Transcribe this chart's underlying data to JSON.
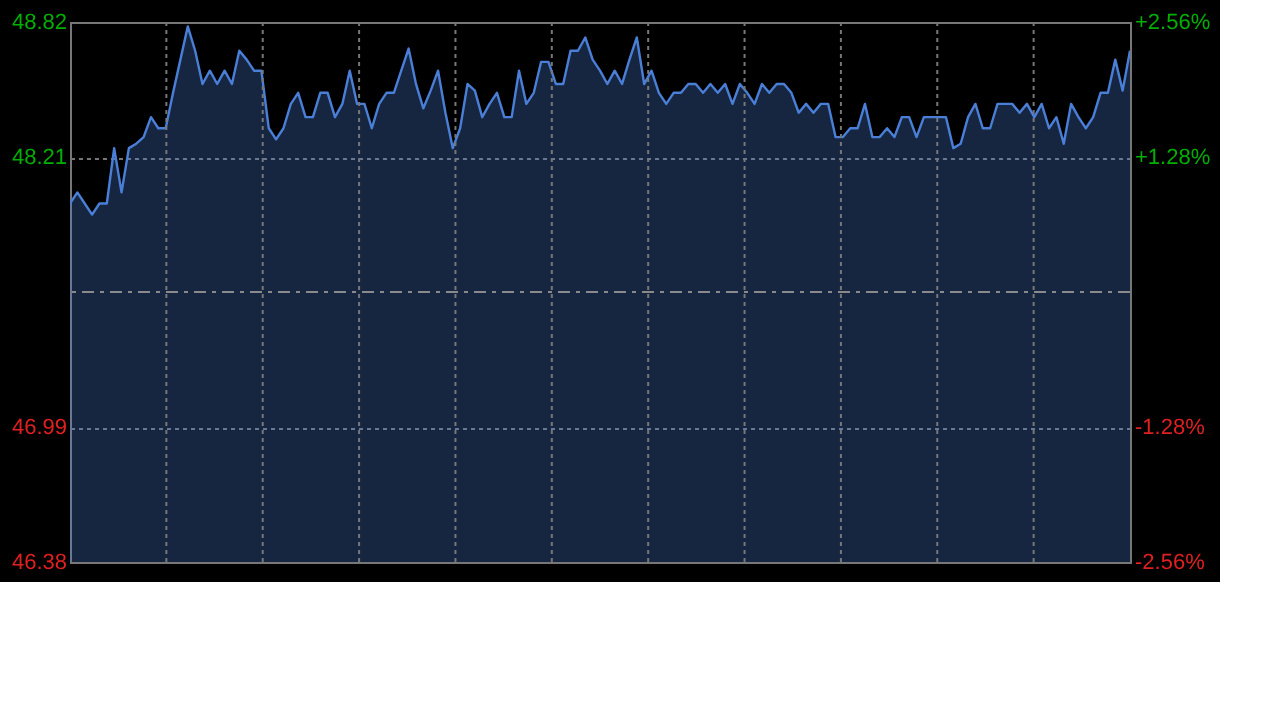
{
  "chart_data": {
    "type": "area",
    "categories": [
      null,
      null,
      null,
      null,
      null,
      null,
      null,
      null,
      null,
      null,
      null,
      null,
      null,
      null,
      null,
      null,
      null,
      null,
      null,
      null,
      null,
      null,
      null,
      null,
      null,
      null,
      null,
      null,
      null,
      null,
      null,
      null,
      null,
      null,
      null,
      null,
      null,
      null,
      null,
      null,
      null,
      null,
      null,
      null,
      null,
      null,
      null,
      null,
      null,
      null,
      null,
      null,
      null,
      null,
      null,
      null,
      null,
      null,
      null,
      null,
      null,
      null,
      null,
      null,
      null,
      null,
      null,
      null,
      null,
      null,
      null,
      null,
      null,
      null,
      null,
      null,
      null,
      null,
      null,
      null,
      null,
      null,
      null,
      null,
      null,
      null,
      null,
      null,
      null,
      null,
      null,
      null,
      null,
      null,
      null,
      null,
      null,
      null,
      null,
      null,
      null,
      null,
      null,
      null,
      null,
      null,
      null,
      null,
      null,
      null,
      null,
      null,
      null,
      null,
      null,
      null,
      null,
      null,
      null,
      null,
      null,
      null,
      null,
      null,
      null,
      null,
      null,
      null,
      null,
      null,
      null,
      null,
      null,
      null,
      null,
      null,
      null,
      null,
      null,
      null,
      null,
      null,
      null,
      null,
      null
    ],
    "series": [
      {
        "color": "#4a7fd8",
        "values": [
          48.0,
          48.05,
          48.0,
          47.95,
          48.0,
          48.0,
          48.25,
          48.05,
          48.25,
          48.27,
          48.3,
          48.39,
          48.34,
          48.34,
          48.5,
          48.65,
          48.8,
          48.69,
          48.54,
          48.6,
          48.54,
          48.6,
          48.54,
          48.69,
          48.65,
          48.6,
          48.6,
          48.34,
          48.29,
          48.34,
          48.45,
          48.5,
          48.39,
          48.39,
          48.5,
          48.5,
          48.39,
          48.45,
          48.6,
          48.45,
          48.45,
          48.34,
          48.45,
          48.5,
          48.5,
          48.6,
          48.7,
          48.54,
          48.43,
          48.51,
          48.6,
          48.41,
          48.25,
          48.34,
          48.54,
          48.51,
          48.39,
          48.45,
          48.5,
          48.39,
          48.39,
          48.6,
          48.45,
          48.5,
          48.64,
          48.64,
          48.54,
          48.54,
          48.69,
          48.69,
          48.75,
          48.65,
          48.6,
          48.54,
          48.6,
          48.54,
          48.65,
          48.75,
          48.54,
          48.6,
          48.5,
          48.45,
          48.5,
          48.5,
          48.54,
          48.54,
          48.5,
          48.54,
          48.5,
          48.54,
          48.45,
          48.54,
          48.5,
          48.45,
          48.54,
          48.5,
          48.54,
          48.54,
          48.5,
          48.41,
          48.45,
          48.41,
          48.45,
          48.45,
          48.3,
          48.3,
          48.34,
          48.34,
          48.45,
          48.3,
          48.3,
          48.34,
          48.3,
          48.39,
          48.39,
          48.3,
          48.39,
          48.39,
          48.39,
          48.39,
          48.25,
          48.27,
          48.39,
          48.45,
          48.34,
          48.34,
          48.45,
          48.45,
          48.45,
          48.41,
          48.45,
          48.39,
          48.45,
          48.34,
          48.39,
          48.27,
          48.45,
          48.39,
          48.34,
          48.39,
          48.5,
          48.5,
          48.65,
          48.51,
          48.69
        ]
      }
    ],
    "ylim": [
      46.38,
      48.82
    ],
    "yticks": [
      46.38,
      46.99,
      48.21,
      48.82
    ],
    "y2lim": [
      -2.56,
      2.56
    ],
    "y2ticks": [
      {
        "value": -2.56,
        "label": "-2.56%"
      },
      {
        "value": -1.28,
        "label": "-1.28%"
      },
      {
        "value": 1.28,
        "label": "+1.28%"
      },
      {
        "value": 2.56,
        "label": "+2.56%"
      }
    ],
    "ref_lines": [
      {
        "axis": "y",
        "value": 47.6,
        "color": "#8a8a8a",
        "line_style": "dashed"
      }
    ],
    "grid": true,
    "line_style": "solid"
  }
}
